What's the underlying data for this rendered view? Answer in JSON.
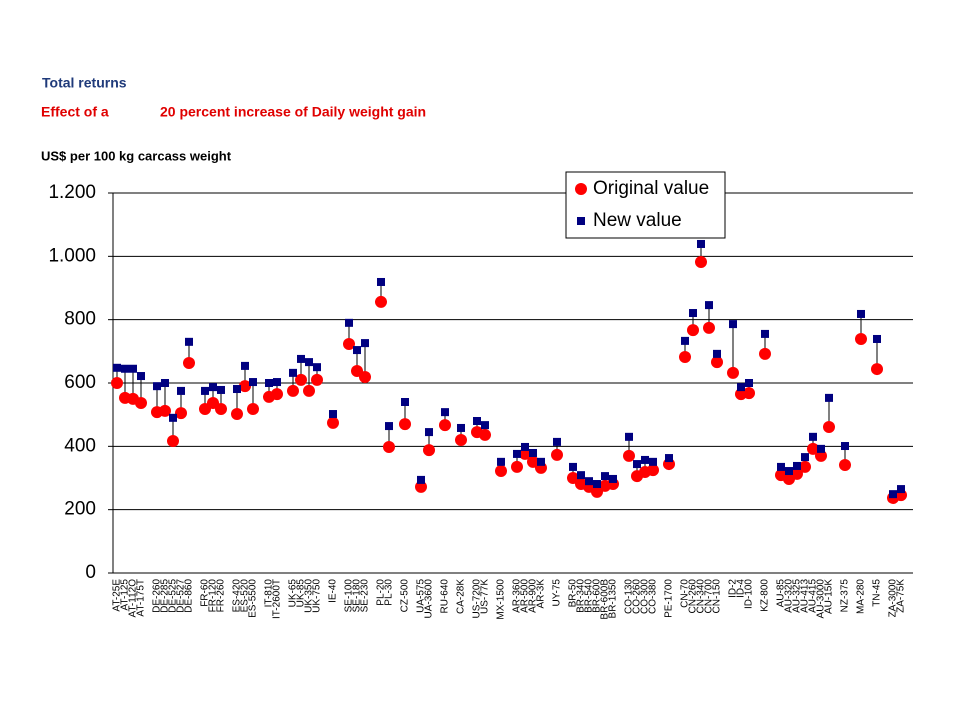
{
  "chart_data": {
    "type": "dot",
    "title": "Total returns",
    "subtitle_parts": [
      "Effect of a",
      "20 percent increase of Daily weight gain"
    ],
    "ylabel": "US$ per 100 kg carcass weight",
    "categories": [
      "AT-25E",
      "AT-125",
      "AT-112O",
      "AT-175T",
      null,
      "DE-260",
      "DE-285",
      "DE-525",
      "DE-527",
      "DE-860",
      null,
      "FR-60",
      "FR-120",
      "FR-260",
      null,
      "ES-420",
      "ES-520",
      "ES-5500",
      null,
      "IT-810",
      "IT-2600T",
      null,
      "UK-65",
      "UK-85",
      "UK-350",
      "UK-750",
      null,
      "IE-40",
      null,
      "SE-100",
      "SE-180",
      "SE-230",
      null,
      "PL-20",
      "PL-30",
      null,
      "CZ-500",
      null,
      "UA-575",
      "UA-3600",
      null,
      "RU-640",
      null,
      "CA-28K",
      null,
      "US-7200",
      "US-77K",
      null,
      "MX-1500",
      null,
      "AR-360",
      "AR-500",
      "AR-900",
      "AR-3K",
      null,
      "UY-75",
      null,
      "BR-50",
      "BR-340",
      "BR-540",
      "BR-600",
      "BR-600B",
      "BR-1350",
      null,
      "CO-130",
      "CO-260",
      "CO-300",
      "CO-380",
      null,
      "PE-1700",
      null,
      "CN-70",
      "CN-260",
      "CN-340",
      "CN-700",
      "CN-150",
      null,
      "ID-2",
      "ID-4",
      "ID-100",
      null,
      "KZ-800",
      null,
      "AU-85",
      "AU-320",
      "AU-325",
      "AU-413",
      "AU-415",
      "AU-3000",
      "AU-15K",
      null,
      "NZ-375",
      null,
      "MA-280",
      null,
      "TN-45",
      null,
      "ZA-3000",
      "ZA-75K",
      null
    ],
    "series": [
      {
        "name": "Original value",
        "color": "#ff0000",
        "marker": "circle",
        "values": [
          600,
          553,
          550,
          537,
          null,
          508,
          512,
          417,
          505,
          663,
          null,
          518,
          537,
          518,
          null,
          502,
          590,
          518,
          null,
          556,
          565,
          null,
          575,
          610,
          575,
          610,
          null,
          474,
          null,
          723,
          638,
          619,
          null,
          856,
          398,
          null,
          470,
          null,
          272,
          388,
          null,
          467,
          null,
          420,
          null,
          445,
          436,
          null,
          322,
          null,
          335,
          376,
          351,
          332,
          null,
          373,
          null,
          300,
          281,
          272,
          256,
          275,
          281,
          null,
          370,
          306,
          319,
          325,
          null,
          344,
          null,
          682,
          767,
          982,
          774,
          666,
          null,
          632,
          565,
          568,
          null,
          692,
          null,
          309,
          297,
          313,
          335,
          392,
          370,
          461,
          null,
          341,
          null,
          739,
          null,
          644,
          null,
          237,
          246,
          null
        ]
      },
      {
        "name": "New value",
        "color": "#000080",
        "marker": "square",
        "values": [
          648,
          645,
          645,
          622,
          null,
          590,
          600,
          490,
          575,
          730,
          null,
          575,
          587,
          578,
          null,
          581,
          654,
          603,
          null,
          600,
          603,
          null,
          632,
          676,
          666,
          650,
          null,
          502,
          null,
          790,
          704,
          726,
          null,
          919,
          464,
          null,
          540,
          null,
          294,
          445,
          null,
          508,
          null,
          458,
          null,
          480,
          467,
          null,
          351,
          null,
          376,
          398,
          379,
          351,
          null,
          414,
          null,
          335,
          309,
          290,
          281,
          306,
          297,
          null,
          430,
          344,
          357,
          351,
          null,
          363,
          null,
          733,
          821,
          1039,
          846,
          692,
          null,
          786,
          587,
          600,
          null,
          755,
          null,
          335,
          322,
          338,
          366,
          430,
          392,
          553,
          null,
          401,
          null,
          818,
          null,
          739,
          null,
          249,
          265,
          null
        ]
      }
    ],
    "ylim": [
      0,
      1200
    ],
    "yticks": [
      0,
      200,
      400,
      600,
      800,
      {
        "value": 1000,
        "label": "1.000"
      },
      {
        "value": 1200,
        "label": "1.200"
      }
    ],
    "grid": true,
    "legend": "top-right"
  }
}
